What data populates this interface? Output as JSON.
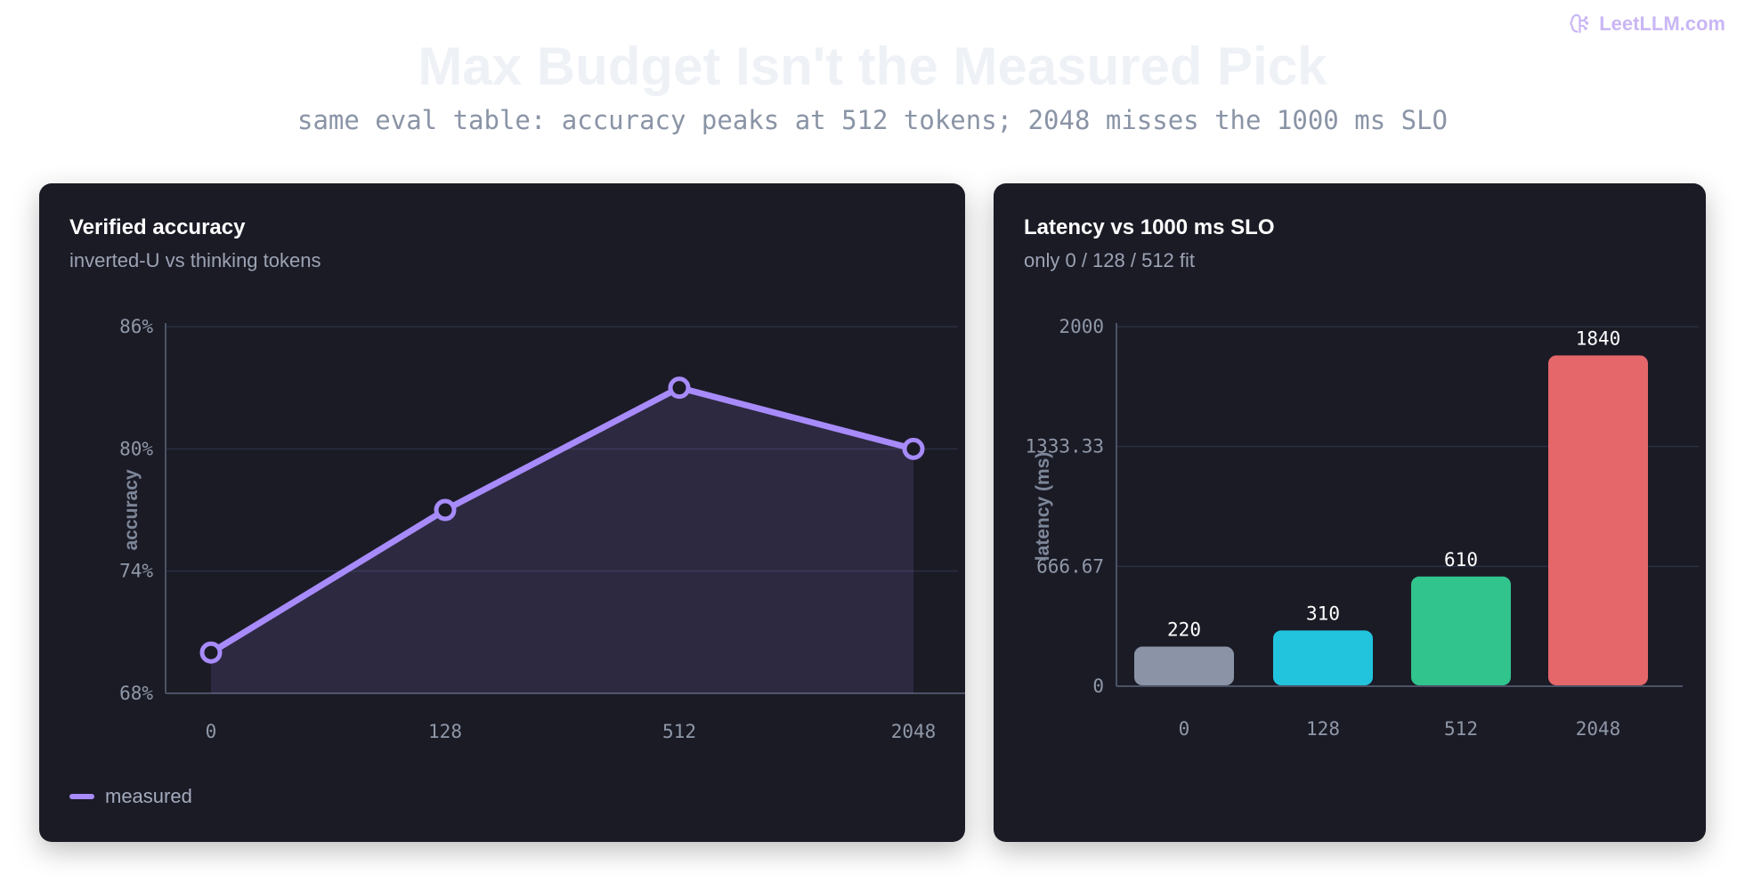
{
  "brand": {
    "name": "LeetLLM.com",
    "icon": "brain-icon",
    "color": "#c9b6f4"
  },
  "page": {
    "title": "Max Budget Isn't the Measured Pick",
    "subtitle": "same eval table: accuracy peaks at 512 tokens; 2048 misses the 1000 ms SLO"
  },
  "accuracy_panel": {
    "title": "Verified accuracy",
    "subtitle": "inverted-U vs thinking tokens",
    "legend": "measured"
  },
  "latency_panel": {
    "title": "Latency vs 1000 ms SLO",
    "subtitle": "only 0 / 128 / 512 fit"
  },
  "chart_data": [
    {
      "type": "line",
      "title": "Verified accuracy",
      "subtitle": "inverted-U vs thinking tokens",
      "categories": [
        "0",
        "128",
        "512",
        "2048"
      ],
      "series": [
        {
          "name": "measured",
          "values": [
            70,
            77,
            83,
            80
          ],
          "color": "#a78bfa"
        }
      ],
      "xlabel": "",
      "ylabel": "accuracy",
      "ylim": [
        68,
        86
      ],
      "yticks": [
        68,
        74,
        80,
        86
      ],
      "ytick_labels": [
        "68%",
        "74%",
        "80%",
        "86%"
      ],
      "grid": true,
      "area_fill": true,
      "legend_position": "bottom-left"
    },
    {
      "type": "bar",
      "title": "Latency vs 1000 ms SLO",
      "subtitle": "only 0 / 128 / 512 fit",
      "categories": [
        "0",
        "128",
        "512",
        "2048"
      ],
      "values": [
        220,
        310,
        610,
        1840
      ],
      "value_labels": [
        "220",
        "310",
        "610",
        "1840"
      ],
      "colors": [
        "#8a94a6",
        "#22c4dd",
        "#31c48d",
        "#e5676a"
      ],
      "xlabel": "",
      "ylabel": "latency (ms)",
      "ylim": [
        0,
        2000
      ],
      "yticks": [
        0,
        666.67,
        1333.33,
        2000
      ],
      "ytick_labels": [
        "0",
        "666.67",
        "1333.33",
        "2000"
      ],
      "grid": true
    }
  ]
}
